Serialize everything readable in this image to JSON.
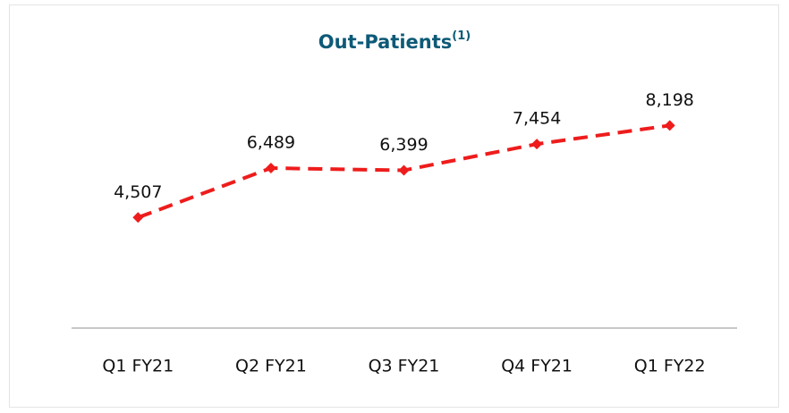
{
  "chart_data": {
    "type": "line",
    "title": "Out-Patients",
    "title_note": "(1)",
    "categories": [
      "Q1 FY21",
      "Q2 FY21",
      "Q3 FY21",
      "Q4 FY21",
      "Q1 FY22"
    ],
    "values": [
      4507,
      6489,
      6399,
      7454,
      8198
    ],
    "value_labels": [
      "4,507",
      "6,489",
      "6,399",
      "7,454",
      "8,198"
    ],
    "color": "#ee1c1c",
    "line_style": "dashed",
    "marker": "diamond",
    "ylim": [
      0,
      9000
    ]
  }
}
